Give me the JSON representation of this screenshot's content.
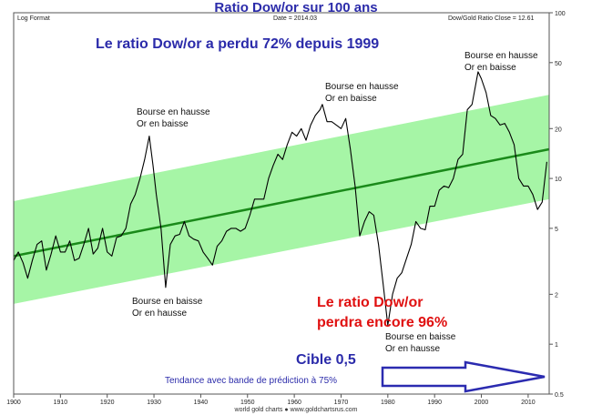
{
  "header": {
    "title": "Ratio Dow/or sur 100 ans",
    "left_label": "Log Format",
    "center_label": "Date = 2014.03",
    "right_label": "Dow/Gold Ratio Close = 12.61"
  },
  "annotations": {
    "headline": "Le ratio Dow/or a perdu 72% depuis 1999",
    "forecast_line1": "Le ratio Dow/or",
    "forecast_line2": "perdra encore 96%",
    "target": "Cible 0,5",
    "trend_note": "Tendance avec bande de prédiction à 75%",
    "peak_1929": [
      "Bourse en hausse",
      "Or en baisse"
    ],
    "peak_1966": [
      "Bourse en hausse",
      "Or en baisse"
    ],
    "peak_1999": [
      "Bourse en hausse",
      "Or en baisse"
    ],
    "trough_1932": [
      "Bourse en baisse",
      "Or en hausse"
    ],
    "trough_1980": [
      "Bourse en baisse",
      "Or en hausse"
    ]
  },
  "footer": "world gold charts ● www.goldchartsrus.com",
  "colors": {
    "band": "#a6f5a6",
    "trend": "#1a8a1a",
    "series": "#000000",
    "arrow": "#2b2bb0",
    "title": "#2b2baa",
    "forecast": "#e01010"
  },
  "chart_data": {
    "type": "line",
    "title": "Ratio Dow/or sur 100 ans",
    "xlabel": "",
    "ylabel": "",
    "yscale": "log",
    "xlim": [
      1900,
      2014.5
    ],
    "ylim": [
      0.5,
      100
    ],
    "x_ticks": [
      1900,
      1910,
      1920,
      1930,
      1940,
      1950,
      1960,
      1970,
      1980,
      1990,
      2000,
      2010
    ],
    "y_ticks": [
      100,
      50,
      20,
      10,
      5,
      2,
      1,
      0.5
    ],
    "grid": false,
    "series": [
      {
        "name": "Dow/Gold Ratio",
        "x": [
          1900,
          1901,
          1902,
          1903,
          1904,
          1905,
          1906,
          1907,
          1908,
          1909,
          1910,
          1911,
          1912,
          1913,
          1914,
          1915,
          1916,
          1917,
          1918,
          1919,
          1920,
          1921,
          1922,
          1923,
          1924,
          1925,
          1926,
          1927,
          1928,
          1929,
          1929.8,
          1930.5,
          1931.5,
          1932.5,
          1933.5,
          1934.5,
          1935.5,
          1936.5,
          1937.5,
          1938.5,
          1939.5,
          1940.5,
          1941.5,
          1942.5,
          1943.5,
          1944.5,
          1945.5,
          1946.5,
          1947.5,
          1948.5,
          1949.5,
          1950.5,
          1951.5,
          1952.5,
          1953.5,
          1954.5,
          1955.5,
          1956.5,
          1957.5,
          1958.5,
          1959.5,
          1960.5,
          1961.5,
          1962.5,
          1963.5,
          1964.5,
          1965.5,
          1966.0,
          1967.0,
          1968.0,
          1969.0,
          1970.0,
          1971.0,
          1972.0,
          1973.0,
          1974.0,
          1975.0,
          1976.0,
          1977.0,
          1978.0,
          1979.0,
          1980.0,
          1981.0,
          1982.0,
          1983.0,
          1984.0,
          1985.0,
          1986.0,
          1987.0,
          1988.0,
          1989.0,
          1990.0,
          1991.0,
          1992.0,
          1993.0,
          1994.0,
          1995.0,
          1996.0,
          1997.0,
          1998.0,
          1999.3,
          2000.0,
          2001.0,
          2002.0,
          2003.0,
          2004.0,
          2005.0,
          2006.0,
          2007.0,
          2008.0,
          2009.0,
          2010.0,
          2011.0,
          2012.0,
          2013.0,
          2014.0
        ],
        "values": [
          3.2,
          3.6,
          3.1,
          2.5,
          3.2,
          4.0,
          4.2,
          2.8,
          3.5,
          4.5,
          3.6,
          3.6,
          4.2,
          3.2,
          3.3,
          4.0,
          5.0,
          3.5,
          3.8,
          5.0,
          3.6,
          3.4,
          4.4,
          4.5,
          5.0,
          7.0,
          8.0,
          10.0,
          13.0,
          18.0,
          12.0,
          8.0,
          5.0,
          2.2,
          4.0,
          4.5,
          4.6,
          5.5,
          4.5,
          4.3,
          4.2,
          3.6,
          3.3,
          3.0,
          3.9,
          4.2,
          4.8,
          5.0,
          5.0,
          4.8,
          5.0,
          6.0,
          7.5,
          7.5,
          7.5,
          10.0,
          12.0,
          14.0,
          13.0,
          16.0,
          19.0,
          18.0,
          20.0,
          17.0,
          21.0,
          24.0,
          26.0,
          28.0,
          22.0,
          22.0,
          21.0,
          20.0,
          23.0,
          15.0,
          9.0,
          4.5,
          5.5,
          6.3,
          6.0,
          4.0,
          2.3,
          1.3,
          2.0,
          2.5,
          2.7,
          3.3,
          4.0,
          5.5,
          5.0,
          4.9,
          6.8,
          6.8,
          8.5,
          9.0,
          8.8,
          10.0,
          13.0,
          14.0,
          26.0,
          28.0,
          44.0,
          40.0,
          33.0,
          24.0,
          23.0,
          21.0,
          21.5,
          19.0,
          16.0,
          10.0,
          9.0,
          9.0,
          8.0,
          6.5,
          7.2,
          12.61
        ]
      }
    ],
    "trend": {
      "name": "Tendance",
      "x": [
        1900,
        2014.5
      ],
      "values": [
        3.4,
        15.0
      ]
    },
    "band": {
      "name": "bande de prédiction à 75%",
      "x": [
        1900,
        2014.5
      ],
      "upper": [
        7.3,
        32.0
      ],
      "lower": [
        1.75,
        7.5
      ]
    }
  }
}
